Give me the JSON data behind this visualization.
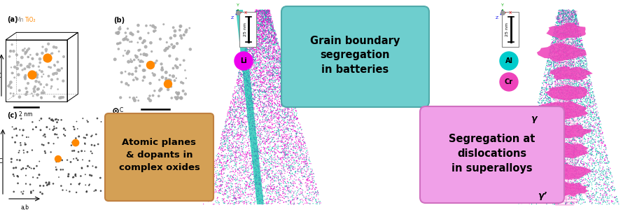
{
  "bg_color": "#ffffff",
  "panel_a_label": "(a)",
  "panel_b_label": "(b)",
  "panel_c_label": "(c)",
  "box1_text": "Atomic planes\n& dopants in\ncomplex oxides",
  "box1_color": "#D4A055",
  "box1_edge": "#C08040",
  "box2_text": "Grain boundary\nsegregation\nin batteries",
  "box2_color": "#6ECECE",
  "box2_edge": "#50AAAA",
  "box3_text": "Segregation at\ndislocations\nin superalloys",
  "box3_color": "#F0A0E8",
  "box3_edge": "#D070C0",
  "mn_label": "Mn",
  "tio2_label": "TiO₂",
  "tio2_color": "#FF8800",
  "c_label": "C",
  "scale_2nm": "2 nm",
  "scale_25nm": "25 nm",
  "li_label": "Li",
  "li_color": "#EE00EE",
  "al_label": "Al",
  "al_color": "#00CCCC",
  "cr_label": "Cr",
  "cr_color": "#EE44BB",
  "gamma_label": "γ",
  "gamma_prime_label": "γ’",
  "atom_color_gray": "#AAAAAA",
  "atom_color_orange": "#FF8800",
  "magenta_dot": "#EE00CC",
  "teal_dot": "#00BBAA",
  "axis_x_color": "#FF0000",
  "axis_y_color": "#00BB00",
  "axis_z_color": "#0000EE"
}
